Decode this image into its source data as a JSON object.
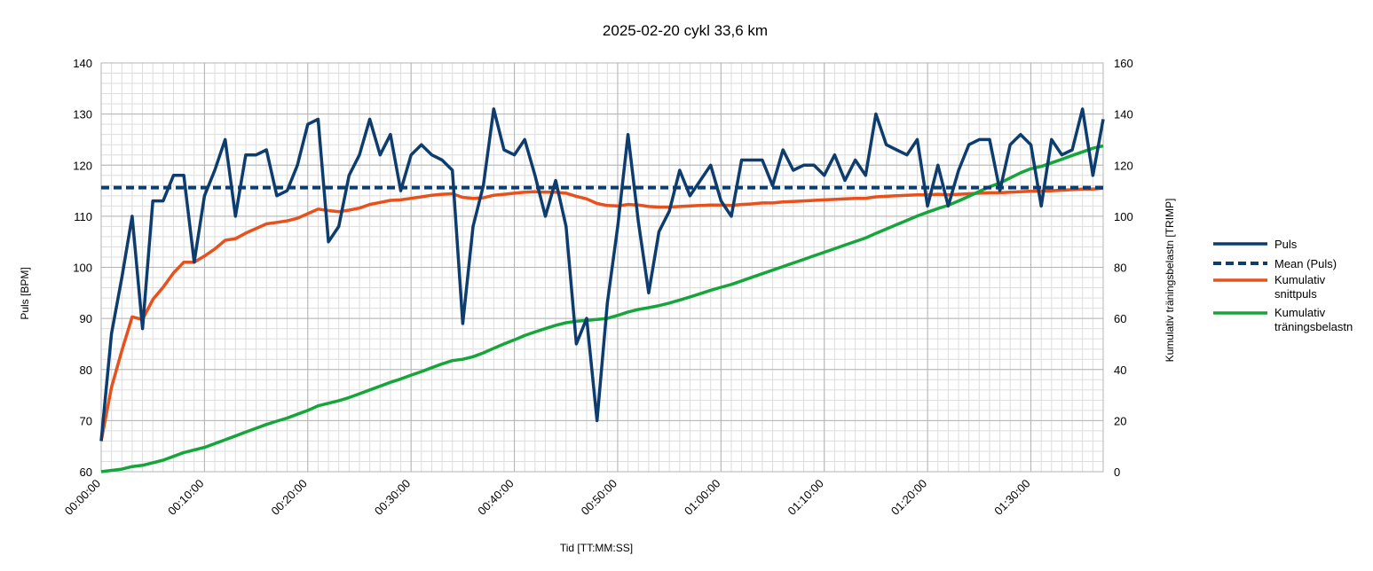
{
  "chart_data": {
    "type": "line",
    "title": "2025-02-20 cykl 33,6 km",
    "xlabel": "Tid [TT:MM:SS]",
    "ylabel": "Puls [BPM]",
    "y2label": "Kumulativ träningsbelastn [TRIMP]",
    "xlim": [
      0,
      97
    ],
    "ylim": [
      60,
      140
    ],
    "y2lim": [
      0,
      160
    ],
    "y_ticks": [
      "60",
      "70",
      "80",
      "90",
      "100",
      "110",
      "120",
      "130",
      "140"
    ],
    "y2_ticks": [
      "0",
      "20",
      "40",
      "60",
      "80",
      "100",
      "120",
      "140",
      "160"
    ],
    "x_ticks": [
      {
        "v": 0,
        "label": "00:00:00"
      },
      {
        "v": 10,
        "label": "00:10:00"
      },
      {
        "v": 20,
        "label": "00:20:00"
      },
      {
        "v": 30,
        "label": "00:30:00"
      },
      {
        "v": 40,
        "label": "00:40:00"
      },
      {
        "v": 50,
        "label": "00:50:00"
      },
      {
        "v": 60,
        "label": "01:00:00"
      },
      {
        "v": 70,
        "label": "01:10:00"
      },
      {
        "v": 80,
        "label": "01:20:00"
      },
      {
        "v": 90,
        "label": "01:30:00"
      }
    ],
    "grid": true,
    "legend_position": "right",
    "series": [
      {
        "name": "Puls",
        "axis": "left",
        "color": "#0d3d6e",
        "style": "solid",
        "points": [
          [
            0,
            66
          ],
          [
            1,
            87
          ],
          [
            2,
            98
          ],
          [
            3,
            110
          ],
          [
            4,
            88
          ],
          [
            5,
            113
          ],
          [
            6,
            113
          ],
          [
            7,
            118
          ],
          [
            8,
            118
          ],
          [
            9,
            101
          ],
          [
            10,
            114
          ],
          [
            11,
            119
          ],
          [
            12,
            125
          ],
          [
            13,
            110
          ],
          [
            14,
            122
          ],
          [
            15,
            122
          ],
          [
            16,
            123
          ],
          [
            17,
            114
          ],
          [
            18,
            115
          ],
          [
            19,
            120
          ],
          [
            20,
            128
          ],
          [
            21,
            129
          ],
          [
            22,
            105
          ],
          [
            23,
            108
          ],
          [
            24,
            118
          ],
          [
            25,
            122
          ],
          [
            26,
            129
          ],
          [
            27,
            122
          ],
          [
            28,
            126
          ],
          [
            29,
            115
          ],
          [
            30,
            122
          ],
          [
            31,
            124
          ],
          [
            32,
            122
          ],
          [
            33,
            121
          ],
          [
            34,
            119
          ],
          [
            35,
            89
          ],
          [
            36,
            108
          ],
          [
            37,
            116
          ],
          [
            38,
            131
          ],
          [
            39,
            123
          ],
          [
            40,
            122
          ],
          [
            41,
            125
          ],
          [
            42,
            118
          ],
          [
            43,
            110
          ],
          [
            44,
            117
          ],
          [
            45,
            108
          ],
          [
            46,
            85
          ],
          [
            47,
            90
          ],
          [
            48,
            70
          ],
          [
            49,
            93
          ],
          [
            50,
            108
          ],
          [
            51,
            126
          ],
          [
            52,
            109
          ],
          [
            53,
            95
          ],
          [
            54,
            107
          ],
          [
            55,
            111
          ],
          [
            56,
            119
          ],
          [
            57,
            114
          ],
          [
            58,
            117
          ],
          [
            59,
            120
          ],
          [
            60,
            113
          ],
          [
            61,
            110
          ],
          [
            62,
            121
          ],
          [
            63,
            121
          ],
          [
            64,
            121
          ],
          [
            65,
            116
          ],
          [
            66,
            123
          ],
          [
            67,
            119
          ],
          [
            68,
            120
          ],
          [
            69,
            120
          ],
          [
            70,
            118
          ],
          [
            71,
            122
          ],
          [
            72,
            117
          ],
          [
            73,
            121
          ],
          [
            74,
            118
          ],
          [
            75,
            130
          ],
          [
            76,
            124
          ],
          [
            77,
            123
          ],
          [
            78,
            122
          ],
          [
            79,
            125
          ],
          [
            80,
            112
          ],
          [
            81,
            120
          ],
          [
            82,
            112
          ],
          [
            83,
            119
          ],
          [
            84,
            124
          ],
          [
            85,
            125
          ],
          [
            86,
            125
          ],
          [
            87,
            115
          ],
          [
            88,
            124
          ],
          [
            89,
            126
          ],
          [
            90,
            124
          ],
          [
            91,
            112
          ],
          [
            92,
            125
          ],
          [
            93,
            122
          ],
          [
            94,
            123
          ],
          [
            95,
            131
          ],
          [
            96,
            118
          ],
          [
            97,
            129
          ]
        ]
      },
      {
        "name": "Mean (Puls)",
        "axis": "left",
        "color": "#0d3d6e",
        "style": "dashed",
        "points": [
          [
            0,
            115.6
          ],
          [
            97,
            115.6
          ]
        ]
      },
      {
        "name": "Kumulativ snittpuls",
        "axis": "left",
        "color": "#e8501c",
        "style": "solid",
        "points": [
          [
            0,
            66
          ],
          [
            1,
            76.5
          ],
          [
            2,
            83.7
          ],
          [
            3,
            90.3
          ],
          [
            4,
            89.8
          ],
          [
            5,
            93.7
          ],
          [
            6,
            96.1
          ],
          [
            7,
            98.9
          ],
          [
            8,
            101
          ],
          [
            9,
            101
          ],
          [
            10,
            102.2
          ],
          [
            11,
            103.6
          ],
          [
            12,
            105.3
          ],
          [
            13,
            105.6
          ],
          [
            14,
            106.7
          ],
          [
            15,
            107.6
          ],
          [
            16,
            108.5
          ],
          [
            17,
            108.8
          ],
          [
            18,
            109.1
          ],
          [
            19,
            109.6
          ],
          [
            20,
            110.5
          ],
          [
            21,
            111.4
          ],
          [
            22,
            111.1
          ],
          [
            23,
            110.9
          ],
          [
            24,
            111.2
          ],
          [
            25,
            111.6
          ],
          [
            26,
            112.3
          ],
          [
            27,
            112.7
          ],
          [
            28,
            113.1
          ],
          [
            29,
            113.2
          ],
          [
            30,
            113.5
          ],
          [
            31,
            113.8
          ],
          [
            32,
            114.1
          ],
          [
            33,
            114.3
          ],
          [
            34,
            114.4
          ],
          [
            35,
            113.7
          ],
          [
            36,
            113.5
          ],
          [
            37,
            113.6
          ],
          [
            38,
            114.1
          ],
          [
            39,
            114.3
          ],
          [
            40,
            114.5
          ],
          [
            41,
            114.7
          ],
          [
            42,
            114.8
          ],
          [
            43,
            114.7
          ],
          [
            44,
            114.7
          ],
          [
            45,
            114.5
          ],
          [
            46,
            113.9
          ],
          [
            47,
            113.4
          ],
          [
            48,
            112.5
          ],
          [
            49,
            112.1
          ],
          [
            50,
            112
          ],
          [
            51,
            112.3
          ],
          [
            52,
            112.2
          ],
          [
            53,
            111.9
          ],
          [
            54,
            111.8
          ],
          [
            55,
            111.8
          ],
          [
            56,
            111.9
          ],
          [
            57,
            112
          ],
          [
            58,
            112.1
          ],
          [
            59,
            112.2
          ],
          [
            60,
            112.2
          ],
          [
            61,
            112.1
          ],
          [
            62,
            112.3
          ],
          [
            63,
            112.4
          ],
          [
            64,
            112.6
          ],
          [
            65,
            112.6
          ],
          [
            66,
            112.8
          ],
          [
            67,
            112.9
          ],
          [
            68,
            113
          ],
          [
            69,
            113.1
          ],
          [
            70,
            113.2
          ],
          [
            71,
            113.3
          ],
          [
            72,
            113.4
          ],
          [
            73,
            113.5
          ],
          [
            74,
            113.5
          ],
          [
            75,
            113.8
          ],
          [
            76,
            113.9
          ],
          [
            77,
            114
          ],
          [
            78,
            114.1
          ],
          [
            79,
            114.2
          ],
          [
            80,
            114.2
          ],
          [
            81,
            114.3
          ],
          [
            82,
            114.2
          ],
          [
            83,
            114.3
          ],
          [
            84,
            114.4
          ],
          [
            85,
            114.5
          ],
          [
            86,
            114.6
          ],
          [
            87,
            114.6
          ],
          [
            88,
            114.7
          ],
          [
            89,
            114.8
          ],
          [
            90,
            114.9
          ],
          [
            91,
            114.9
          ],
          [
            92,
            115
          ],
          [
            93,
            115.1
          ],
          [
            94,
            115.2
          ],
          [
            95,
            115.3
          ],
          [
            96,
            115.3
          ],
          [
            97,
            115.5
          ]
        ]
      },
      {
        "name": "Kumulativ träningsbelastn",
        "axis": "right",
        "color": "#16a53a",
        "style": "solid",
        "points": [
          [
            0,
            0
          ],
          [
            2,
            1
          ],
          [
            3,
            2
          ],
          [
            4,
            2.5
          ],
          [
            5,
            3.5
          ],
          [
            6,
            4.5
          ],
          [
            7,
            6
          ],
          [
            8,
            7.5
          ],
          [
            9,
            8.5
          ],
          [
            10,
            9.5
          ],
          [
            11,
            11
          ],
          [
            12,
            12.5
          ],
          [
            13,
            14
          ],
          [
            14,
            15.5
          ],
          [
            15,
            17
          ],
          [
            16,
            18.5
          ],
          [
            17,
            19.8
          ],
          [
            18,
            21
          ],
          [
            19,
            22.5
          ],
          [
            20,
            24
          ],
          [
            21,
            25.8
          ],
          [
            22,
            26.8
          ],
          [
            23,
            27.8
          ],
          [
            24,
            29
          ],
          [
            25,
            30.5
          ],
          [
            26,
            32
          ],
          [
            27,
            33.5
          ],
          [
            28,
            35
          ],
          [
            29,
            36.3
          ],
          [
            30,
            37.8
          ],
          [
            31,
            39.2
          ],
          [
            32,
            40.7
          ],
          [
            33,
            42.2
          ],
          [
            34,
            43.5
          ],
          [
            35,
            44
          ],
          [
            36,
            45
          ],
          [
            37,
            46.5
          ],
          [
            38,
            48.3
          ],
          [
            39,
            50
          ],
          [
            40,
            51.6
          ],
          [
            41,
            53.3
          ],
          [
            42,
            54.7
          ],
          [
            43,
            56
          ],
          [
            44,
            57.3
          ],
          [
            45,
            58.3
          ],
          [
            46,
            58.9
          ],
          [
            47,
            59.2
          ],
          [
            48,
            59.6
          ],
          [
            49,
            60
          ],
          [
            50,
            61.2
          ],
          [
            51,
            62.5
          ],
          [
            52,
            63.5
          ],
          [
            53,
            64.2
          ],
          [
            54,
            65
          ],
          [
            55,
            66
          ],
          [
            56,
            67.2
          ],
          [
            57,
            68.4
          ],
          [
            58,
            69.7
          ],
          [
            59,
            71
          ],
          [
            60,
            72.2
          ],
          [
            61,
            73.3
          ],
          [
            62,
            74.7
          ],
          [
            63,
            76.1
          ],
          [
            64,
            77.5
          ],
          [
            65,
            78.9
          ],
          [
            66,
            80.3
          ],
          [
            67,
            81.7
          ],
          [
            68,
            83.1
          ],
          [
            69,
            84.5
          ],
          [
            70,
            85.9
          ],
          [
            71,
            87.3
          ],
          [
            72,
            88.7
          ],
          [
            73,
            90.1
          ],
          [
            74,
            91.5
          ],
          [
            75,
            93.3
          ],
          [
            76,
            95
          ],
          [
            77,
            96.7
          ],
          [
            78,
            98.4
          ],
          [
            79,
            100.1
          ],
          [
            80,
            101.6
          ],
          [
            81,
            103
          ],
          [
            82,
            104.3
          ],
          [
            83,
            106
          ],
          [
            84,
            107.8
          ],
          [
            85,
            109.7
          ],
          [
            86,
            111.5
          ],
          [
            87,
            113
          ],
          [
            88,
            115
          ],
          [
            89,
            117
          ],
          [
            90,
            118.6
          ],
          [
            91,
            119.5
          ],
          [
            92,
            120.9
          ],
          [
            93,
            122.3
          ],
          [
            94,
            123.8
          ],
          [
            95,
            125.2
          ],
          [
            96,
            126.6
          ],
          [
            97,
            127.5
          ]
        ]
      }
    ]
  }
}
